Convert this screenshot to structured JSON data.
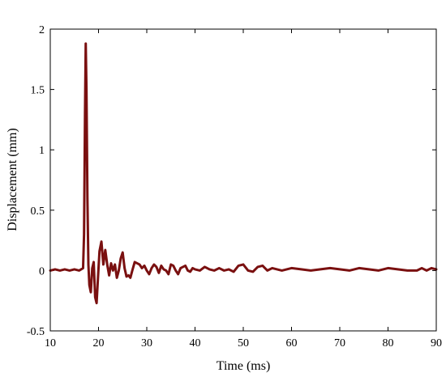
{
  "chart_data": {
    "type": "line",
    "title": "",
    "xlabel": "Time (ms)",
    "ylabel": "Displacement (mm)",
    "xlim": [
      10,
      90
    ],
    "ylim": [
      -0.5,
      2
    ],
    "xticks": [
      10,
      20,
      30,
      40,
      50,
      60,
      70,
      80,
      90
    ],
    "yticks": [
      -0.5,
      0,
      0.5,
      1,
      1.5,
      2
    ],
    "ytick_labels": [
      "-0.5",
      "0",
      "0.5",
      "1",
      "1.5",
      "2"
    ],
    "grid": false,
    "line_color": "#7a1010",
    "series": [
      {
        "x": [
          10,
          11,
          12,
          13,
          14,
          15,
          16,
          16.8,
          17.0,
          17.2,
          17.35,
          17.5,
          17.7,
          17.9,
          18.1,
          18.4,
          18.7,
          19.0,
          19.3,
          19.6,
          19.9,
          20.2,
          20.6,
          21.0,
          21.4,
          21.8,
          22.2,
          22.6,
          23.0,
          23.4,
          23.8,
          24.2,
          24.6,
          25.0,
          25.4,
          25.8,
          26.2,
          26.6,
          27.0,
          27.5,
          28.0,
          28.5,
          29.0,
          29.5,
          30.0,
          30.5,
          31.0,
          31.5,
          32.0,
          32.5,
          33.0,
          33.5,
          34.0,
          34.5,
          35.0,
          35.5,
          36.0,
          36.5,
          37.0,
          37.5,
          38.0,
          38.5,
          39.0,
          39.5,
          40.0,
          41.0,
          42.0,
          43.0,
          44.0,
          45.0,
          46.0,
          47.0,
          48.0,
          49.0,
          50.0,
          51.0,
          52.0,
          53.0,
          54.0,
          55.0,
          56.0,
          57.0,
          58.0,
          60.0,
          62.0,
          64.0,
          66.0,
          68.0,
          70.0,
          72.0,
          74.0,
          76.0,
          78.0,
          80.0,
          82.0,
          84.0,
          86.0,
          87.0,
          88.0,
          89.0,
          90.0
        ],
        "y": [
          0.0,
          0.01,
          0.0,
          0.01,
          0.0,
          0.01,
          0.0,
          0.02,
          0.3,
          1.3,
          1.88,
          1.5,
          0.6,
          0.05,
          -0.12,
          -0.18,
          0.02,
          0.07,
          -0.22,
          -0.27,
          -0.05,
          0.16,
          0.24,
          0.05,
          0.17,
          0.05,
          -0.04,
          0.06,
          0.0,
          0.05,
          -0.06,
          0.0,
          0.1,
          0.15,
          0.02,
          -0.05,
          -0.04,
          -0.06,
          0.0,
          0.07,
          0.06,
          0.05,
          0.02,
          0.04,
          0.0,
          -0.03,
          0.02,
          0.05,
          0.03,
          -0.02,
          0.04,
          0.01,
          0.0,
          -0.03,
          0.05,
          0.04,
          0.0,
          -0.03,
          0.02,
          0.03,
          0.04,
          0.0,
          -0.01,
          0.02,
          0.01,
          0.0,
          0.03,
          0.01,
          0.0,
          0.02,
          0.0,
          0.01,
          -0.01,
          0.04,
          0.05,
          0.0,
          -0.01,
          0.03,
          0.04,
          0.0,
          0.02,
          0.01,
          0.0,
          0.02,
          0.01,
          0.0,
          0.01,
          0.02,
          0.01,
          0.0,
          0.02,
          0.01,
          0.0,
          0.02,
          0.01,
          0.0,
          0.0,
          0.02,
          0.0,
          0.02,
          0.01
        ]
      }
    ]
  }
}
